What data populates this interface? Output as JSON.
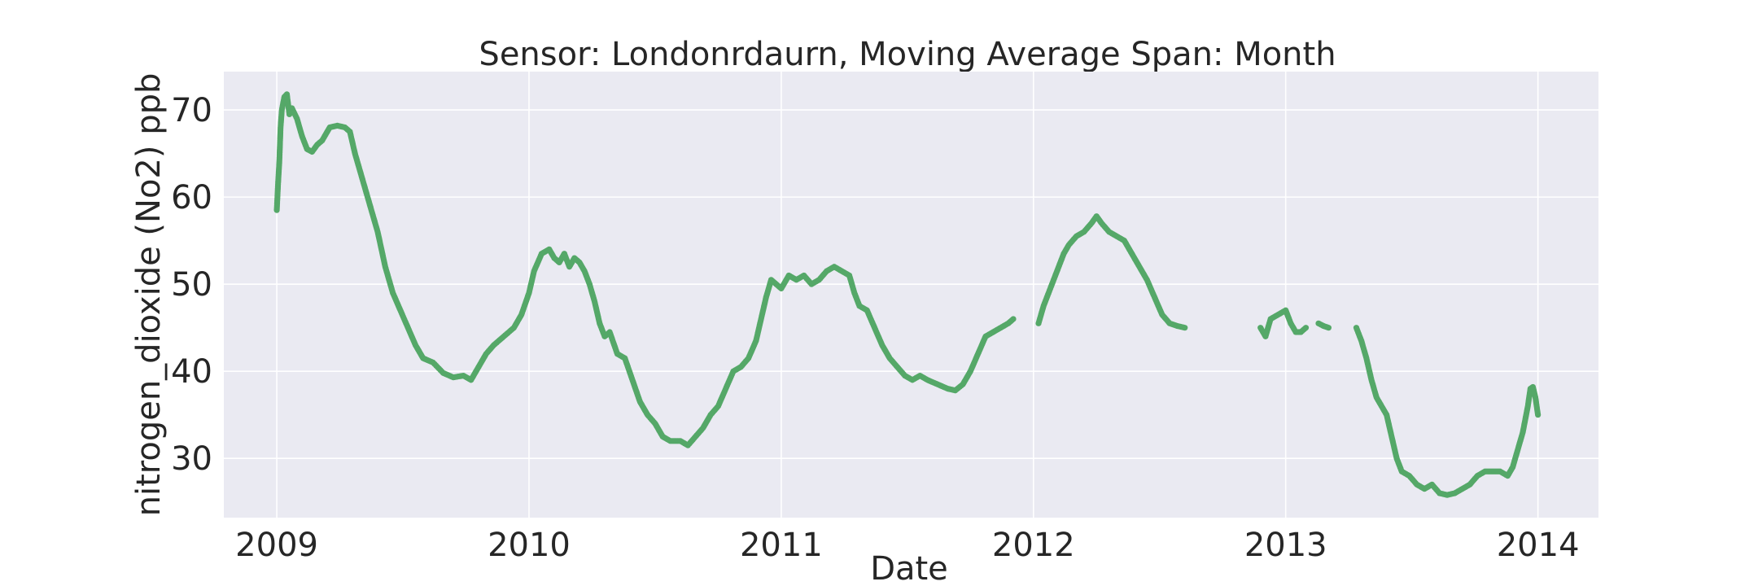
{
  "chart_data": {
    "type": "scatter",
    "title": "Sensor: Londonrdaurn, Moving Average Span: Month",
    "xlabel": "Date",
    "ylabel": "nitrogen_dioxide (No2) ppb",
    "xlim": [
      2008.79,
      2014.24
    ],
    "ylim": [
      23.2,
      74.4
    ],
    "x_ticks": [
      {
        "value": 2009,
        "label": "2009"
      },
      {
        "value": 2010,
        "label": "2010"
      },
      {
        "value": 2011,
        "label": "2011"
      },
      {
        "value": 2012,
        "label": "2012"
      },
      {
        "value": 2013,
        "label": "2013"
      },
      {
        "value": 2014,
        "label": "2014"
      }
    ],
    "y_ticks": [
      {
        "value": 30,
        "label": "30"
      },
      {
        "value": 40,
        "label": "40"
      },
      {
        "value": 50,
        "label": "50"
      },
      {
        "value": 60,
        "label": "60"
      },
      {
        "value": 70,
        "label": "70"
      }
    ],
    "grid": true,
    "background_color": "#eaeaf2",
    "grid_color": "#ffffff",
    "marker_color": "#55a868",
    "series": [
      {
        "segments": [
          [
            [
              2009.0,
              58.5
            ],
            [
              2009.005,
              61.5
            ],
            [
              2009.01,
              64.0
            ],
            [
              2009.015,
              68.0
            ],
            [
              2009.02,
              70.0
            ],
            [
              2009.03,
              71.5
            ],
            [
              2009.04,
              71.8
            ],
            [
              2009.05,
              69.5
            ],
            [
              2009.06,
              70.2
            ],
            [
              2009.08,
              69.0
            ],
            [
              2009.1,
              67.0
            ],
            [
              2009.12,
              65.5
            ],
            [
              2009.14,
              65.2
            ],
            [
              2009.16,
              66.0
            ],
            [
              2009.18,
              66.5
            ],
            [
              2009.21,
              68.0
            ],
            [
              2009.24,
              68.2
            ],
            [
              2009.27,
              68.0
            ],
            [
              2009.29,
              67.5
            ],
            [
              2009.31,
              65.0
            ],
            [
              2009.34,
              62.0
            ],
            [
              2009.37,
              59.0
            ],
            [
              2009.4,
              56.0
            ],
            [
              2009.43,
              52.0
            ],
            [
              2009.46,
              49.0
            ],
            [
              2009.49,
              47.0
            ],
            [
              2009.52,
              45.0
            ],
            [
              2009.55,
              43.0
            ],
            [
              2009.58,
              41.5
            ],
            [
              2009.62,
              41.0
            ],
            [
              2009.66,
              39.8
            ],
            [
              2009.7,
              39.3
            ],
            [
              2009.74,
              39.5
            ],
            [
              2009.77,
              39.0
            ],
            [
              2009.8,
              40.5
            ],
            [
              2009.83,
              42.0
            ],
            [
              2009.86,
              43.0
            ],
            [
              2009.9,
              44.0
            ],
            [
              2009.94,
              45.0
            ],
            [
              2009.97,
              46.5
            ],
            [
              2010.0,
              49.0
            ],
            [
              2010.02,
              51.5
            ],
            [
              2010.05,
              53.5
            ],
            [
              2010.08,
              54.0
            ],
            [
              2010.1,
              53.0
            ],
            [
              2010.12,
              52.5
            ],
            [
              2010.14,
              53.5
            ],
            [
              2010.16,
              52.0
            ],
            [
              2010.18,
              53.0
            ],
            [
              2010.2,
              52.5
            ],
            [
              2010.22,
              51.5
            ],
            [
              2010.24,
              50.0
            ],
            [
              2010.26,
              48.0
            ],
            [
              2010.28,
              45.5
            ],
            [
              2010.3,
              44.0
            ],
            [
              2010.32,
              44.5
            ],
            [
              2010.35,
              42.0
            ],
            [
              2010.38,
              41.5
            ],
            [
              2010.41,
              39.0
            ],
            [
              2010.44,
              36.5
            ],
            [
              2010.47,
              35.0
            ],
            [
              2010.5,
              34.0
            ],
            [
              2010.53,
              32.5
            ],
            [
              2010.56,
              32.0
            ],
            [
              2010.6,
              32.0
            ],
            [
              2010.63,
              31.5
            ],
            [
              2010.66,
              32.5
            ],
            [
              2010.69,
              33.5
            ],
            [
              2010.72,
              35.0
            ],
            [
              2010.75,
              36.0
            ],
            [
              2010.78,
              38.0
            ],
            [
              2010.81,
              40.0
            ],
            [
              2010.84,
              40.5
            ],
            [
              2010.87,
              41.5
            ],
            [
              2010.9,
              43.5
            ],
            [
              2010.92,
              46.0
            ],
            [
              2010.94,
              48.5
            ],
            [
              2010.96,
              50.5
            ],
            [
              2010.98,
              50.0
            ],
            [
              2011.0,
              49.5
            ],
            [
              2011.03,
              51.0
            ],
            [
              2011.06,
              50.5
            ],
            [
              2011.09,
              51.0
            ],
            [
              2011.12,
              50.0
            ],
            [
              2011.15,
              50.5
            ],
            [
              2011.18,
              51.5
            ],
            [
              2011.21,
              52.0
            ],
            [
              2011.24,
              51.5
            ],
            [
              2011.27,
              51.0
            ],
            [
              2011.29,
              49.0
            ],
            [
              2011.31,
              47.5
            ],
            [
              2011.34,
              47.0
            ],
            [
              2011.37,
              45.0
            ],
            [
              2011.4,
              43.0
            ],
            [
              2011.43,
              41.5
            ],
            [
              2011.46,
              40.5
            ],
            [
              2011.49,
              39.5
            ],
            [
              2011.52,
              39.0
            ],
            [
              2011.55,
              39.5
            ],
            [
              2011.58,
              39.0
            ],
            [
              2011.62,
              38.5
            ],
            [
              2011.66,
              38.0
            ],
            [
              2011.69,
              37.8
            ],
            [
              2011.72,
              38.5
            ],
            [
              2011.75,
              40.0
            ],
            [
              2011.78,
              42.0
            ],
            [
              2011.81,
              44.0
            ],
            [
              2011.84,
              44.5
            ],
            [
              2011.87,
              45.0
            ],
            [
              2011.9,
              45.5
            ],
            [
              2011.92,
              46.0
            ]
          ],
          [
            [
              2012.02,
              45.5
            ],
            [
              2012.04,
              47.5
            ],
            [
              2012.06,
              49.0
            ],
            [
              2012.08,
              50.5
            ],
            [
              2012.1,
              52.0
            ],
            [
              2012.12,
              53.5
            ],
            [
              2012.14,
              54.5
            ],
            [
              2012.17,
              55.5
            ],
            [
              2012.2,
              56.0
            ],
            [
              2012.23,
              57.0
            ],
            [
              2012.25,
              57.8
            ],
            [
              2012.27,
              57.0
            ],
            [
              2012.3,
              56.0
            ],
            [
              2012.33,
              55.5
            ],
            [
              2012.36,
              55.0
            ],
            [
              2012.39,
              53.5
            ],
            [
              2012.42,
              52.0
            ],
            [
              2012.45,
              50.5
            ],
            [
              2012.48,
              48.5
            ],
            [
              2012.51,
              46.5
            ],
            [
              2012.54,
              45.5
            ],
            [
              2012.57,
              45.2
            ],
            [
              2012.6,
              45.0
            ]
          ],
          [
            [
              2012.9,
              45.0
            ],
            [
              2012.92,
              44.0
            ],
            [
              2012.94,
              46.0
            ],
            [
              2012.97,
              46.5
            ],
            [
              2013.0,
              47.0
            ],
            [
              2013.02,
              45.5
            ],
            [
              2013.04,
              44.5
            ],
            [
              2013.06,
              44.5
            ],
            [
              2013.08,
              45.0
            ]
          ],
          [
            [
              2013.13,
              45.5
            ],
            [
              2013.15,
              45.2
            ],
            [
              2013.17,
              45.0
            ]
          ],
          [
            [
              2013.28,
              45.0
            ],
            [
              2013.3,
              43.5
            ],
            [
              2013.32,
              41.5
            ],
            [
              2013.34,
              39.0
            ],
            [
              2013.36,
              37.0
            ],
            [
              2013.38,
              36.0
            ],
            [
              2013.4,
              35.0
            ],
            [
              2013.42,
              32.5
            ],
            [
              2013.44,
              30.0
            ],
            [
              2013.46,
              28.5
            ],
            [
              2013.49,
              28.0
            ],
            [
              2013.52,
              27.0
            ],
            [
              2013.55,
              26.5
            ],
            [
              2013.58,
              27.0
            ],
            [
              2013.61,
              26.0
            ],
            [
              2013.64,
              25.8
            ],
            [
              2013.67,
              26.0
            ],
            [
              2013.7,
              26.5
            ],
            [
              2013.73,
              27.0
            ],
            [
              2013.76,
              28.0
            ],
            [
              2013.79,
              28.5
            ],
            [
              2013.82,
              28.5
            ],
            [
              2013.85,
              28.5
            ],
            [
              2013.88,
              28.0
            ],
            [
              2013.9,
              29.0
            ],
            [
              2013.92,
              31.0
            ],
            [
              2013.94,
              33.0
            ],
            [
              2013.96,
              36.0
            ],
            [
              2013.97,
              38.0
            ],
            [
              2013.98,
              38.2
            ],
            [
              2013.99,
              37.0
            ],
            [
              2014.0,
              35.0
            ]
          ]
        ]
      }
    ]
  }
}
